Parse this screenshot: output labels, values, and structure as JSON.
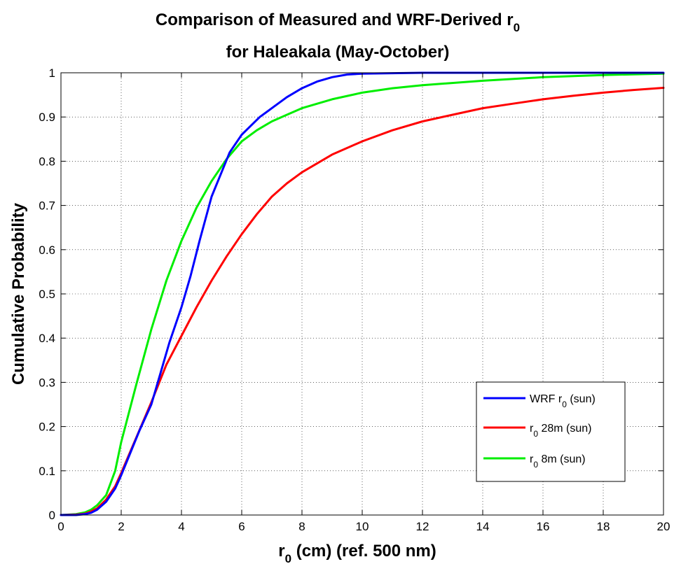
{
  "chart_data": {
    "type": "line",
    "title_line1": "Comparison of Measured and WRF-Derived r",
    "title_line1_sub": "0",
    "title_line2": "for Haleakala (May-October)",
    "xlabel_main": "r",
    "xlabel_sub": "0",
    "xlabel_rest": " (cm) (ref. 500 nm)",
    "ylabel": "Cumulative Probability",
    "xlim": [
      0,
      20
    ],
    "ylim": [
      0,
      1
    ],
    "x_ticks": [
      "0",
      "2",
      "4",
      "6",
      "8",
      "10",
      "12",
      "14",
      "16",
      "18",
      "20"
    ],
    "y_ticks": [
      "0",
      "0.1",
      "0.2",
      "0.3",
      "0.4",
      "0.5",
      "0.6",
      "0.7",
      "0.8",
      "0.9",
      "1"
    ],
    "grid": true,
    "legend_position": "bottom-right",
    "series": [
      {
        "name_main": "WRF r",
        "name_sub": "0",
        "name_rest": " (sun)",
        "color": "#0000ff",
        "x": [
          0,
          0.5,
          0.8,
          1.0,
          1.2,
          1.5,
          1.8,
          2.0,
          2.3,
          2.6,
          3.0,
          3.3,
          3.6,
          4.0,
          4.3,
          4.6,
          5.0,
          5.3,
          5.6,
          6.0,
          6.3,
          6.6,
          7.0,
          7.5,
          8.0,
          8.5,
          9.0,
          9.5,
          10.0,
          11.0,
          12.0,
          14.0,
          16.0,
          18.0,
          20.0
        ],
        "y": [
          0,
          0.0,
          0.002,
          0.005,
          0.012,
          0.03,
          0.06,
          0.09,
          0.14,
          0.19,
          0.25,
          0.32,
          0.39,
          0.47,
          0.54,
          0.62,
          0.72,
          0.77,
          0.82,
          0.86,
          0.88,
          0.9,
          0.92,
          0.945,
          0.965,
          0.98,
          0.99,
          0.996,
          0.998,
          0.999,
          1.0,
          1.0,
          1.0,
          1.0,
          1.0
        ]
      },
      {
        "name_main": "r",
        "name_sub": "0",
        "name_rest": " 28m (sun)",
        "color": "#ff0000",
        "x": [
          0,
          0.5,
          0.8,
          1.0,
          1.2,
          1.5,
          1.8,
          2.0,
          2.5,
          3.0,
          3.5,
          4.0,
          4.5,
          5.0,
          5.5,
          6.0,
          6.5,
          7.0,
          7.5,
          8.0,
          9.0,
          10.0,
          11.0,
          12.0,
          13.0,
          14.0,
          15.0,
          16.0,
          17.0,
          18.0,
          19.0,
          20.0
        ],
        "y": [
          0,
          0.001,
          0.003,
          0.008,
          0.015,
          0.035,
          0.065,
          0.095,
          0.175,
          0.255,
          0.34,
          0.405,
          0.47,
          0.53,
          0.585,
          0.635,
          0.68,
          0.72,
          0.75,
          0.775,
          0.815,
          0.845,
          0.87,
          0.89,
          0.905,
          0.92,
          0.93,
          0.94,
          0.948,
          0.955,
          0.961,
          0.966
        ]
      },
      {
        "name_main": "r",
        "name_sub": "0",
        "name_rest": " 8m (sun)",
        "color": "#00ee00",
        "x": [
          0,
          0.5,
          0.8,
          1.0,
          1.2,
          1.5,
          1.8,
          2.0,
          2.5,
          3.0,
          3.5,
          4.0,
          4.5,
          5.0,
          5.5,
          6.0,
          6.5,
          7.0,
          7.5,
          8.0,
          9.0,
          10.0,
          11.0,
          12.0,
          14.0,
          16.0,
          18.0,
          20.0
        ],
        "y": [
          0,
          0.002,
          0.006,
          0.012,
          0.022,
          0.045,
          0.1,
          0.165,
          0.295,
          0.42,
          0.53,
          0.62,
          0.695,
          0.755,
          0.805,
          0.845,
          0.87,
          0.89,
          0.905,
          0.92,
          0.94,
          0.955,
          0.965,
          0.972,
          0.982,
          0.99,
          0.995,
          0.998
        ]
      }
    ]
  }
}
